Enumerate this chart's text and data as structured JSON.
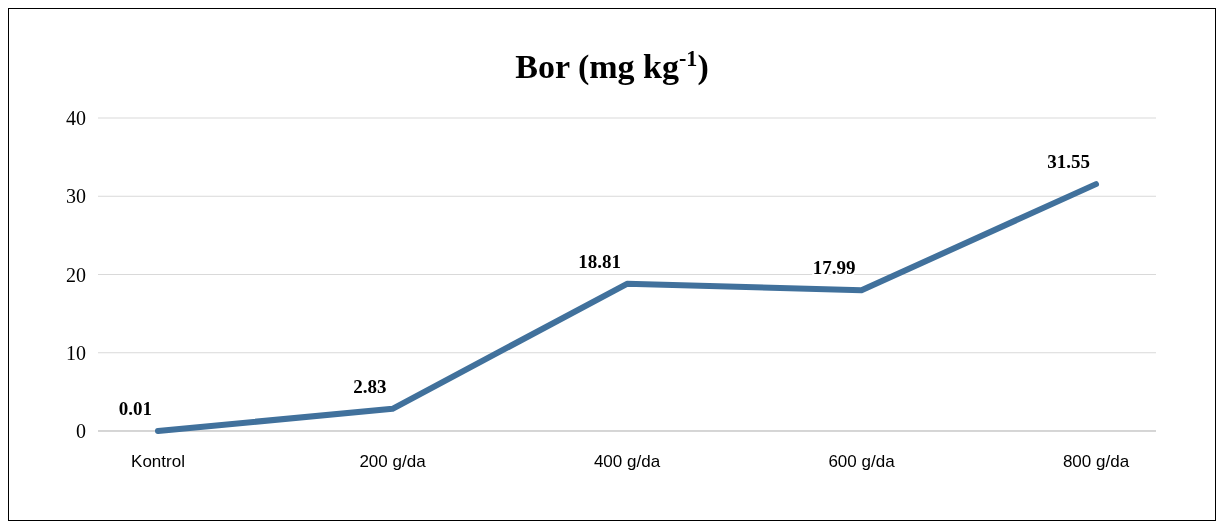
{
  "chart_data": {
    "type": "line",
    "title": "Bor (mg kg$^{-1}$)",
    "categories": [
      "Kontrol",
      "200 g/da",
      "400 g/da",
      "600 g/da",
      "800 g/da"
    ],
    "series": [
      {
        "color": "#41719c",
        "values": [
          0.01,
          2.83,
          18.81,
          17.99,
          31.55
        ]
      }
    ],
    "ylim": [
      0,
      40
    ],
    "yticks": [
      0,
      10,
      20,
      30,
      40
    ],
    "grid": "y",
    "data_labels": true,
    "marker": "none",
    "line_style": "solid"
  }
}
